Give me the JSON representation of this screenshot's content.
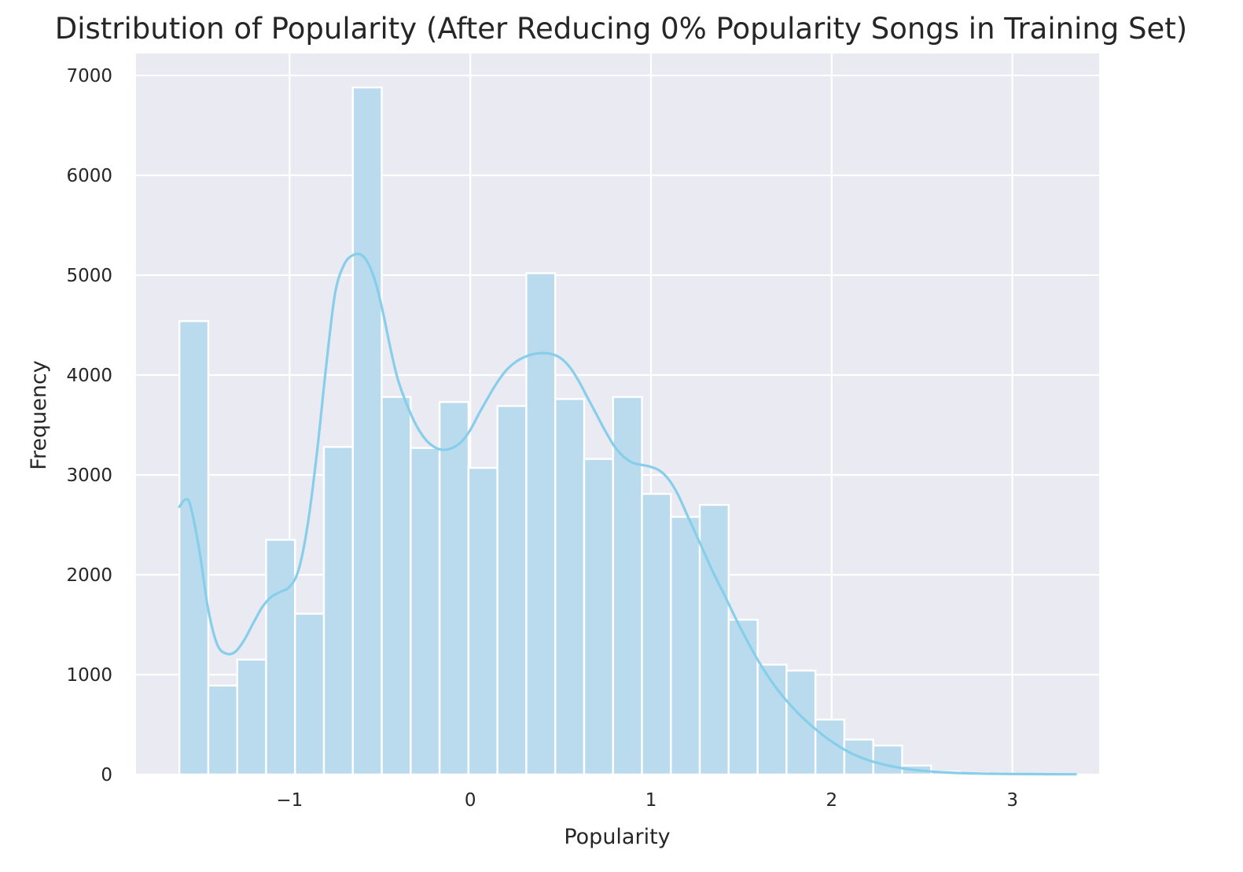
{
  "chart_data": {
    "type": "bar",
    "title": "Distribution of Popularity (After Reducing 0% Popularity Songs in Training Set)",
    "xlabel": "Popularity",
    "ylabel": "Frequency",
    "xlim": [
      -1.85,
      3.48
    ],
    "ylim": [
      0,
      7220
    ],
    "x_ticks": [
      -1,
      0,
      1,
      2,
      3
    ],
    "x_tick_labels": [
      "−1",
      "0",
      "1",
      "2",
      "3"
    ],
    "y_ticks": [
      0,
      1000,
      2000,
      3000,
      4000,
      5000,
      6000,
      7000
    ],
    "y_tick_labels": [
      "0",
      "1000",
      "2000",
      "3000",
      "4000",
      "5000",
      "6000",
      "7000"
    ],
    "grid": true,
    "background_color": "#eaeaf2",
    "bar_color": "#b9dbed",
    "kde_color": "#87ceeb",
    "series": [
      {
        "type": "histogram",
        "bins": [
          {
            "x0": -1.61,
            "x1": -1.45,
            "count": 4540
          },
          {
            "x0": -1.45,
            "x1": -1.29,
            "count": 890
          },
          {
            "x0": -1.29,
            "x1": -1.13,
            "count": 1150
          },
          {
            "x0": -1.13,
            "x1": -0.97,
            "count": 2350
          },
          {
            "x0": -0.97,
            "x1": -0.81,
            "count": 1610
          },
          {
            "x0": -0.81,
            "x1": -0.65,
            "count": 3280
          },
          {
            "x0": -0.65,
            "x1": -0.49,
            "count": 6880
          },
          {
            "x0": -0.49,
            "x1": -0.33,
            "count": 3780
          },
          {
            "x0": -0.33,
            "x1": -0.17,
            "count": 3270
          },
          {
            "x0": -0.17,
            "x1": -0.01,
            "count": 3730
          },
          {
            "x0": -0.01,
            "x1": 0.15,
            "count": 3070
          },
          {
            "x0": 0.15,
            "x1": 0.31,
            "count": 3690
          },
          {
            "x0": 0.31,
            "x1": 0.47,
            "count": 5020
          },
          {
            "x0": 0.47,
            "x1": 0.63,
            "count": 3760
          },
          {
            "x0": 0.63,
            "x1": 0.79,
            "count": 3160
          },
          {
            "x0": 0.79,
            "x1": 0.95,
            "count": 3780
          },
          {
            "x0": 0.95,
            "x1": 1.11,
            "count": 2810
          },
          {
            "x0": 1.11,
            "x1": 1.27,
            "count": 2580
          },
          {
            "x0": 1.27,
            "x1": 1.43,
            "count": 2700
          },
          {
            "x0": 1.43,
            "x1": 1.59,
            "count": 1550
          },
          {
            "x0": 1.59,
            "x1": 1.75,
            "count": 1100
          },
          {
            "x0": 1.75,
            "x1": 1.91,
            "count": 1040
          },
          {
            "x0": 1.91,
            "x1": 2.07,
            "count": 550
          },
          {
            "x0": 2.07,
            "x1": 2.23,
            "count": 350
          },
          {
            "x0": 2.23,
            "x1": 2.39,
            "count": 290
          },
          {
            "x0": 2.39,
            "x1": 2.55,
            "count": 90
          },
          {
            "x0": 2.55,
            "x1": 2.71,
            "count": 30
          },
          {
            "x0": 2.71,
            "x1": 2.87,
            "count": 15
          },
          {
            "x0": 2.87,
            "x1": 3.03,
            "count": 8
          },
          {
            "x0": 3.03,
            "x1": 3.19,
            "count": 4
          },
          {
            "x0": 3.19,
            "x1": 3.35,
            "count": 2
          }
        ]
      },
      {
        "type": "kde_line",
        "x": [
          -1.61,
          -1.58,
          -1.55,
          -1.5,
          -1.45,
          -1.4,
          -1.35,
          -1.3,
          -1.25,
          -1.2,
          -1.15,
          -1.1,
          -1.05,
          -1.0,
          -0.95,
          -0.9,
          -0.85,
          -0.8,
          -0.75,
          -0.7,
          -0.65,
          -0.6,
          -0.56,
          -0.52,
          -0.48,
          -0.44,
          -0.4,
          -0.35,
          -0.3,
          -0.25,
          -0.2,
          -0.15,
          -0.1,
          -0.05,
          0.0,
          0.05,
          0.1,
          0.15,
          0.2,
          0.25,
          0.3,
          0.35,
          0.4,
          0.45,
          0.5,
          0.55,
          0.6,
          0.65,
          0.7,
          0.75,
          0.8,
          0.85,
          0.9,
          0.95,
          1.0,
          1.05,
          1.1,
          1.15,
          1.2,
          1.25,
          1.3,
          1.35,
          1.4,
          1.5,
          1.6,
          1.7,
          1.8,
          1.9,
          2.0,
          2.1,
          2.2,
          2.3,
          2.4,
          2.5,
          2.6,
          2.7,
          2.8,
          2.9,
          3.0,
          3.1,
          3.2,
          3.35
        ],
        "y": [
          2680,
          2750,
          2700,
          2250,
          1650,
          1300,
          1210,
          1230,
          1350,
          1520,
          1680,
          1780,
          1830,
          1880,
          2050,
          2500,
          3200,
          4050,
          4800,
          5100,
          5200,
          5200,
          5100,
          4900,
          4600,
          4250,
          3950,
          3700,
          3500,
          3360,
          3280,
          3250,
          3270,
          3330,
          3450,
          3620,
          3780,
          3930,
          4050,
          4130,
          4180,
          4210,
          4220,
          4210,
          4170,
          4080,
          3940,
          3770,
          3600,
          3430,
          3280,
          3180,
          3120,
          3100,
          3080,
          3040,
          2950,
          2800,
          2600,
          2400,
          2200,
          2000,
          1820,
          1450,
          1120,
          850,
          640,
          470,
          330,
          220,
          145,
          95,
          60,
          38,
          24,
          15,
          10,
          7,
          5,
          4,
          3,
          2
        ]
      }
    ]
  }
}
